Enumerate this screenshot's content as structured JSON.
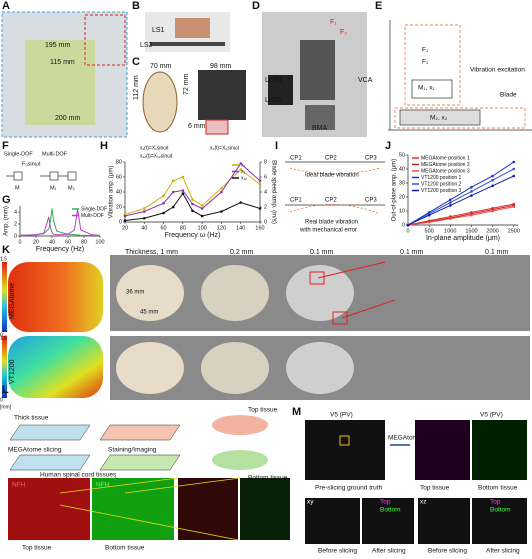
{
  "panels": [
    "A",
    "B",
    "C",
    "D",
    "E",
    "F",
    "G",
    "H",
    "I",
    "J",
    "K",
    "L",
    "M"
  ],
  "a": {
    "dims": [
      "195 mm",
      "115 mm",
      "200 mm"
    ]
  },
  "b": {
    "labels": [
      "LS1",
      "LS2"
    ]
  },
  "c": {
    "dims": [
      "70 mm",
      "98 mm",
      "112 mm",
      "72 mm",
      "6 mm"
    ]
  },
  "d": {
    "labels": [
      "F₁",
      "F₂",
      "LDS1",
      "LDS2",
      "BMA",
      "VCA"
    ]
  },
  "e": {
    "labels": [
      "F₁",
      "F₂",
      "M₁, x₁",
      "M₂, x₂",
      "Vibration excitation",
      "Blade"
    ]
  },
  "f": {
    "labels": [
      "Single-DOF",
      "Multi-DOF",
      "M",
      "M₁",
      "M₂",
      "F₀sinωt"
    ]
  },
  "h_eq": [
    "x₁(t)=X₁sinωt",
    "x₂(t)=X₂sinωt",
    "x₁₂(t)=X₁₂sinωt"
  ],
  "i": {
    "labels": [
      "CP1",
      "CP2",
      "CP3",
      "Ideal blade vibration",
      "CP1",
      "CP2",
      "CP3",
      "Real blade vibration",
      "with mechanical error"
    ]
  },
  "k": {
    "headers": [
      "Thickness, 1 mm",
      "0.2 mm",
      "0.1 mm",
      "0.1 mm",
      "0.1 mm"
    ],
    "dims": [
      "36 mm",
      "45 mm"
    ],
    "rows": [
      "MEGAtome",
      "VT1200"
    ],
    "colorbar": [
      "1.5",
      "0",
      "1.5",
      "0"
    ],
    "unit": "[mm]"
  },
  "l": {
    "labels": [
      "Thick tissue",
      "MEGAtome slicing",
      "Staining/Imaging",
      "Top tissue",
      "Bottom tissue",
      "Human spinal cord tissues",
      "NFH",
      "NFH",
      "Top tissue",
      "Bottom tissue"
    ]
  },
  "m": {
    "labels": [
      "V5 (PV)",
      "V5 (PV)",
      "MEGAtome",
      "Pre-slicing ground truth",
      "Top tissue",
      "Bottom tissue",
      "xy",
      "xz",
      "Top",
      "Bottom",
      "Top",
      "Bottom",
      "Before slicing",
      "After slicing",
      "Before slicing",
      "After slicing"
    ]
  },
  "chart_data": [
    {
      "type": "line",
      "ylabel": "Amp. (mm)",
      "xlabel": "Frequency (Hz)",
      "xlim": [
        0,
        100
      ],
      "ylim": [
        0,
        5
      ],
      "xticks": [
        0,
        20,
        40,
        60,
        80,
        100
      ],
      "yticks": [
        0,
        2,
        4
      ],
      "x": [
        0,
        20,
        30,
        36,
        38,
        40,
        42,
        46,
        60,
        68,
        72,
        76,
        90,
        100
      ],
      "series": [
        {
          "name": "Single-DOF",
          "color": "#2db34a",
          "values": [
            0.1,
            0.2,
            0.4,
            1.2,
            2.5,
            4.6,
            2.5,
            0.8,
            0.3,
            0.2,
            0.2,
            0.1,
            0.1,
            0.1
          ]
        },
        {
          "name": "Multi-DOF",
          "color": "#c03ad0",
          "values": [
            0.1,
            0.2,
            0.5,
            3.2,
            1.5,
            0.6,
            0.3,
            0.2,
            0.3,
            1.0,
            4.4,
            1.0,
            0.2,
            0.1
          ]
        }
      ]
    },
    {
      "type": "line",
      "ylabel": "Vibration amp. (μm)",
      "y2label": "Blade speed amp. (m/s)",
      "xlabel": "Frequency ω (Hz)",
      "xlim": [
        20,
        160
      ],
      "ylim": [
        0,
        80
      ],
      "y2lim": [
        0,
        8
      ],
      "xticks": [
        20,
        40,
        60,
        80,
        100,
        120,
        140,
        160
      ],
      "yticks": [
        0,
        20,
        40,
        60,
        80
      ],
      "y2ticks": [
        0,
        2,
        4,
        6,
        8
      ],
      "x": [
        20,
        40,
        60,
        70,
        80,
        90,
        100,
        120,
        140,
        160
      ],
      "series": [
        {
          "name": "x₁",
          "color": "#c8b400",
          "values": [
            10,
            18,
            35,
            55,
            60,
            30,
            22,
            45,
            70,
            50
          ]
        },
        {
          "name": "x₂",
          "color": "#8e2fa8",
          "values": [
            8,
            14,
            25,
            40,
            42,
            24,
            18,
            40,
            78,
            55
          ]
        },
        {
          "name": "x₁₂",
          "color": "#111111",
          "values": [
            2,
            5,
            12,
            20,
            38,
            15,
            8,
            14,
            26,
            18
          ]
        }
      ]
    },
    {
      "type": "line",
      "ylabel": "Out-of-plane amp. (μm)",
      "xlabel": "In-plane amplitude (μm)",
      "xlim": [
        0,
        2600
      ],
      "ylim": [
        0,
        50
      ],
      "xticks": [
        0,
        500,
        1000,
        1500,
        2000,
        2500
      ],
      "yticks": [
        0,
        10,
        20,
        30,
        40,
        50
      ],
      "x": [
        0,
        500,
        1000,
        1500,
        2000,
        2500
      ],
      "series": [
        {
          "name": "MEGAtome position 1",
          "color": "#e03030",
          "values": [
            0,
            3,
            6,
            9,
            12,
            15
          ]
        },
        {
          "name": "MEGAtome position 2",
          "color": "#c82020",
          "values": [
            0,
            2.5,
            5,
            8,
            11,
            14
          ]
        },
        {
          "name": "MEGAtome position 3",
          "color": "#f05050",
          "values": [
            0,
            2,
            4.5,
            7,
            10,
            13
          ]
        },
        {
          "name": "VT1200 position 1",
          "color": "#2030c0",
          "values": [
            0,
            9,
            18,
            27,
            35,
            45
          ]
        },
        {
          "name": "VT1200 position 2",
          "color": "#3050e0",
          "values": [
            0,
            8,
            16,
            24,
            32,
            40
          ]
        },
        {
          "name": "VT1200 position 3",
          "color": "#1020a0",
          "values": [
            0,
            7,
            14,
            21,
            28,
            35
          ]
        }
      ]
    }
  ]
}
